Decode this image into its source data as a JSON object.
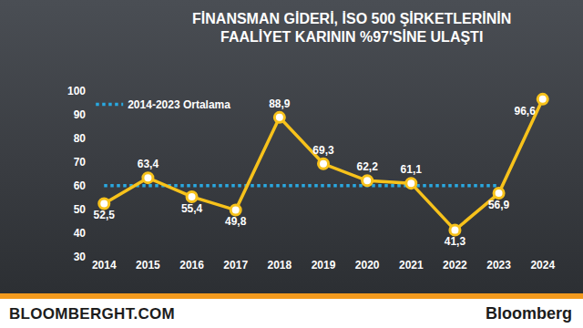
{
  "chart_data": {
    "type": "line",
    "title": [
      "FİNANSMAN GİDERİ, İSO 500 ŞİRKETLERİNİN",
      "FAALİYET KARININ %97'SİNE ULAŞTI"
    ],
    "categories": [
      "2014",
      "2015",
      "2016",
      "2017",
      "2018",
      "2019",
      "2020",
      "2021",
      "2022",
      "2023",
      "2024"
    ],
    "values": [
      52.5,
      63.4,
      55.4,
      49.8,
      88.9,
      69.3,
      62.2,
      61.1,
      41.3,
      56.9,
      96.6
    ],
    "value_labels": [
      "52,5",
      "63,4",
      "55,4",
      "49,8",
      "88,9",
      "69,3",
      "62,2",
      "61,1",
      "41,3",
      "56,9",
      "96,6"
    ],
    "color": "#f7c21b",
    "marker": "circle",
    "data_labels": true,
    "ylim": [
      30,
      100
    ],
    "yticks": [
      30,
      40,
      50,
      60,
      70,
      80,
      90,
      100
    ],
    "grid": false,
    "legend": "top-left",
    "reference_line": {
      "name": "2014-2023 Ortalama",
      "value": 60.1,
      "from": "2014",
      "to": "2023",
      "color": "#29a8e0",
      "line_style": "dotted"
    },
    "footer": {
      "left": "BLOOMBERGHT.COM",
      "right": "Bloomberg"
    }
  }
}
